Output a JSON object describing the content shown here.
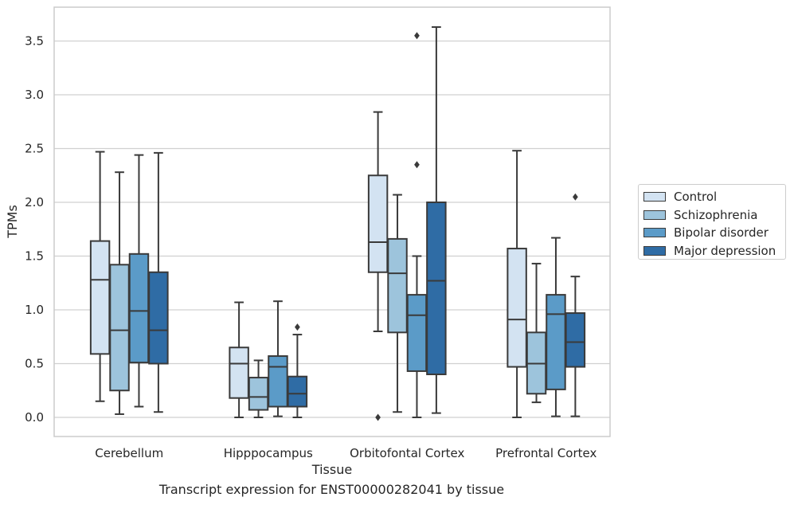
{
  "chart_data": {
    "type": "box",
    "xlabel": "Tissue",
    "ylabel": "TPMs",
    "ylim": [
      -0.175,
      3.8
    ],
    "yticks": [
      0.0,
      0.5,
      1.0,
      1.5,
      2.0,
      2.5,
      3.0,
      3.5
    ],
    "ytick_labels": [
      "0.0",
      "0.5",
      "1.0",
      "1.5",
      "2.0",
      "2.5",
      "3.0",
      "3.5"
    ],
    "grid": true,
    "legend_position": "right",
    "categories": [
      "Cerebellum",
      "Hipppocampus",
      "Orbitofontal Cortex",
      "Prefrontal Cortex"
    ],
    "series": [
      {
        "name": "Control",
        "color": "#d3e3f2",
        "boxes": [
          {
            "whisker_low": 0.15,
            "q1": 0.59,
            "median": 1.28,
            "q3": 1.64,
            "whisker_high": 2.47,
            "outliers": []
          },
          {
            "whisker_low": 0.0,
            "q1": 0.18,
            "median": 0.5,
            "q3": 0.65,
            "whisker_high": 1.07,
            "outliers": []
          },
          {
            "whisker_low": 0.8,
            "q1": 1.35,
            "median": 1.63,
            "q3": 2.25,
            "whisker_high": 2.84,
            "outliers": [
              0.0
            ]
          },
          {
            "whisker_low": 0.0,
            "q1": 0.47,
            "median": 0.91,
            "q3": 1.57,
            "whisker_high": 2.48,
            "outliers": []
          }
        ]
      },
      {
        "name": "Schizophrenia",
        "color": "#9dc4dc",
        "boxes": [
          {
            "whisker_low": 0.03,
            "q1": 0.25,
            "median": 0.81,
            "q3": 1.42,
            "whisker_high": 2.28,
            "outliers": []
          },
          {
            "whisker_low": 0.0,
            "q1": 0.07,
            "median": 0.19,
            "q3": 0.37,
            "whisker_high": 0.53,
            "outliers": []
          },
          {
            "whisker_low": 0.05,
            "q1": 0.79,
            "median": 1.34,
            "q3": 1.66,
            "whisker_high": 2.07,
            "outliers": []
          },
          {
            "whisker_low": 0.14,
            "q1": 0.22,
            "median": 0.5,
            "q3": 0.79,
            "whisker_high": 1.43,
            "outliers": []
          }
        ]
      },
      {
        "name": "Bipolar disorder",
        "color": "#5b9bc8",
        "boxes": [
          {
            "whisker_low": 0.1,
            "q1": 0.51,
            "median": 0.99,
            "q3": 1.52,
            "whisker_high": 2.44,
            "outliers": []
          },
          {
            "whisker_low": 0.01,
            "q1": 0.1,
            "median": 0.47,
            "q3": 0.57,
            "whisker_high": 1.08,
            "outliers": []
          },
          {
            "whisker_low": 0.0,
            "q1": 0.43,
            "median": 0.95,
            "q3": 1.14,
            "whisker_high": 1.5,
            "outliers": [
              2.35,
              3.55
            ]
          },
          {
            "whisker_low": 0.01,
            "q1": 0.26,
            "median": 0.96,
            "q3": 1.14,
            "whisker_high": 1.67,
            "outliers": []
          }
        ]
      },
      {
        "name": "Major depression",
        "color": "#2f6ca5",
        "boxes": [
          {
            "whisker_low": 0.05,
            "q1": 0.5,
            "median": 0.81,
            "q3": 1.35,
            "whisker_high": 2.46,
            "outliers": []
          },
          {
            "whisker_low": 0.0,
            "q1": 0.1,
            "median": 0.22,
            "q3": 0.38,
            "whisker_high": 0.77,
            "outliers": [
              0.84
            ]
          },
          {
            "whisker_low": 0.04,
            "q1": 0.4,
            "median": 1.27,
            "q3": 2.0,
            "whisker_high": 3.63,
            "outliers": []
          },
          {
            "whisker_low": 0.01,
            "q1": 0.47,
            "median": 0.7,
            "q3": 0.97,
            "whisker_high": 1.31,
            "outliers": [
              2.05
            ]
          }
        ]
      }
    ]
  },
  "caption": "Transcript expression for ENST00000282041 by tissue"
}
